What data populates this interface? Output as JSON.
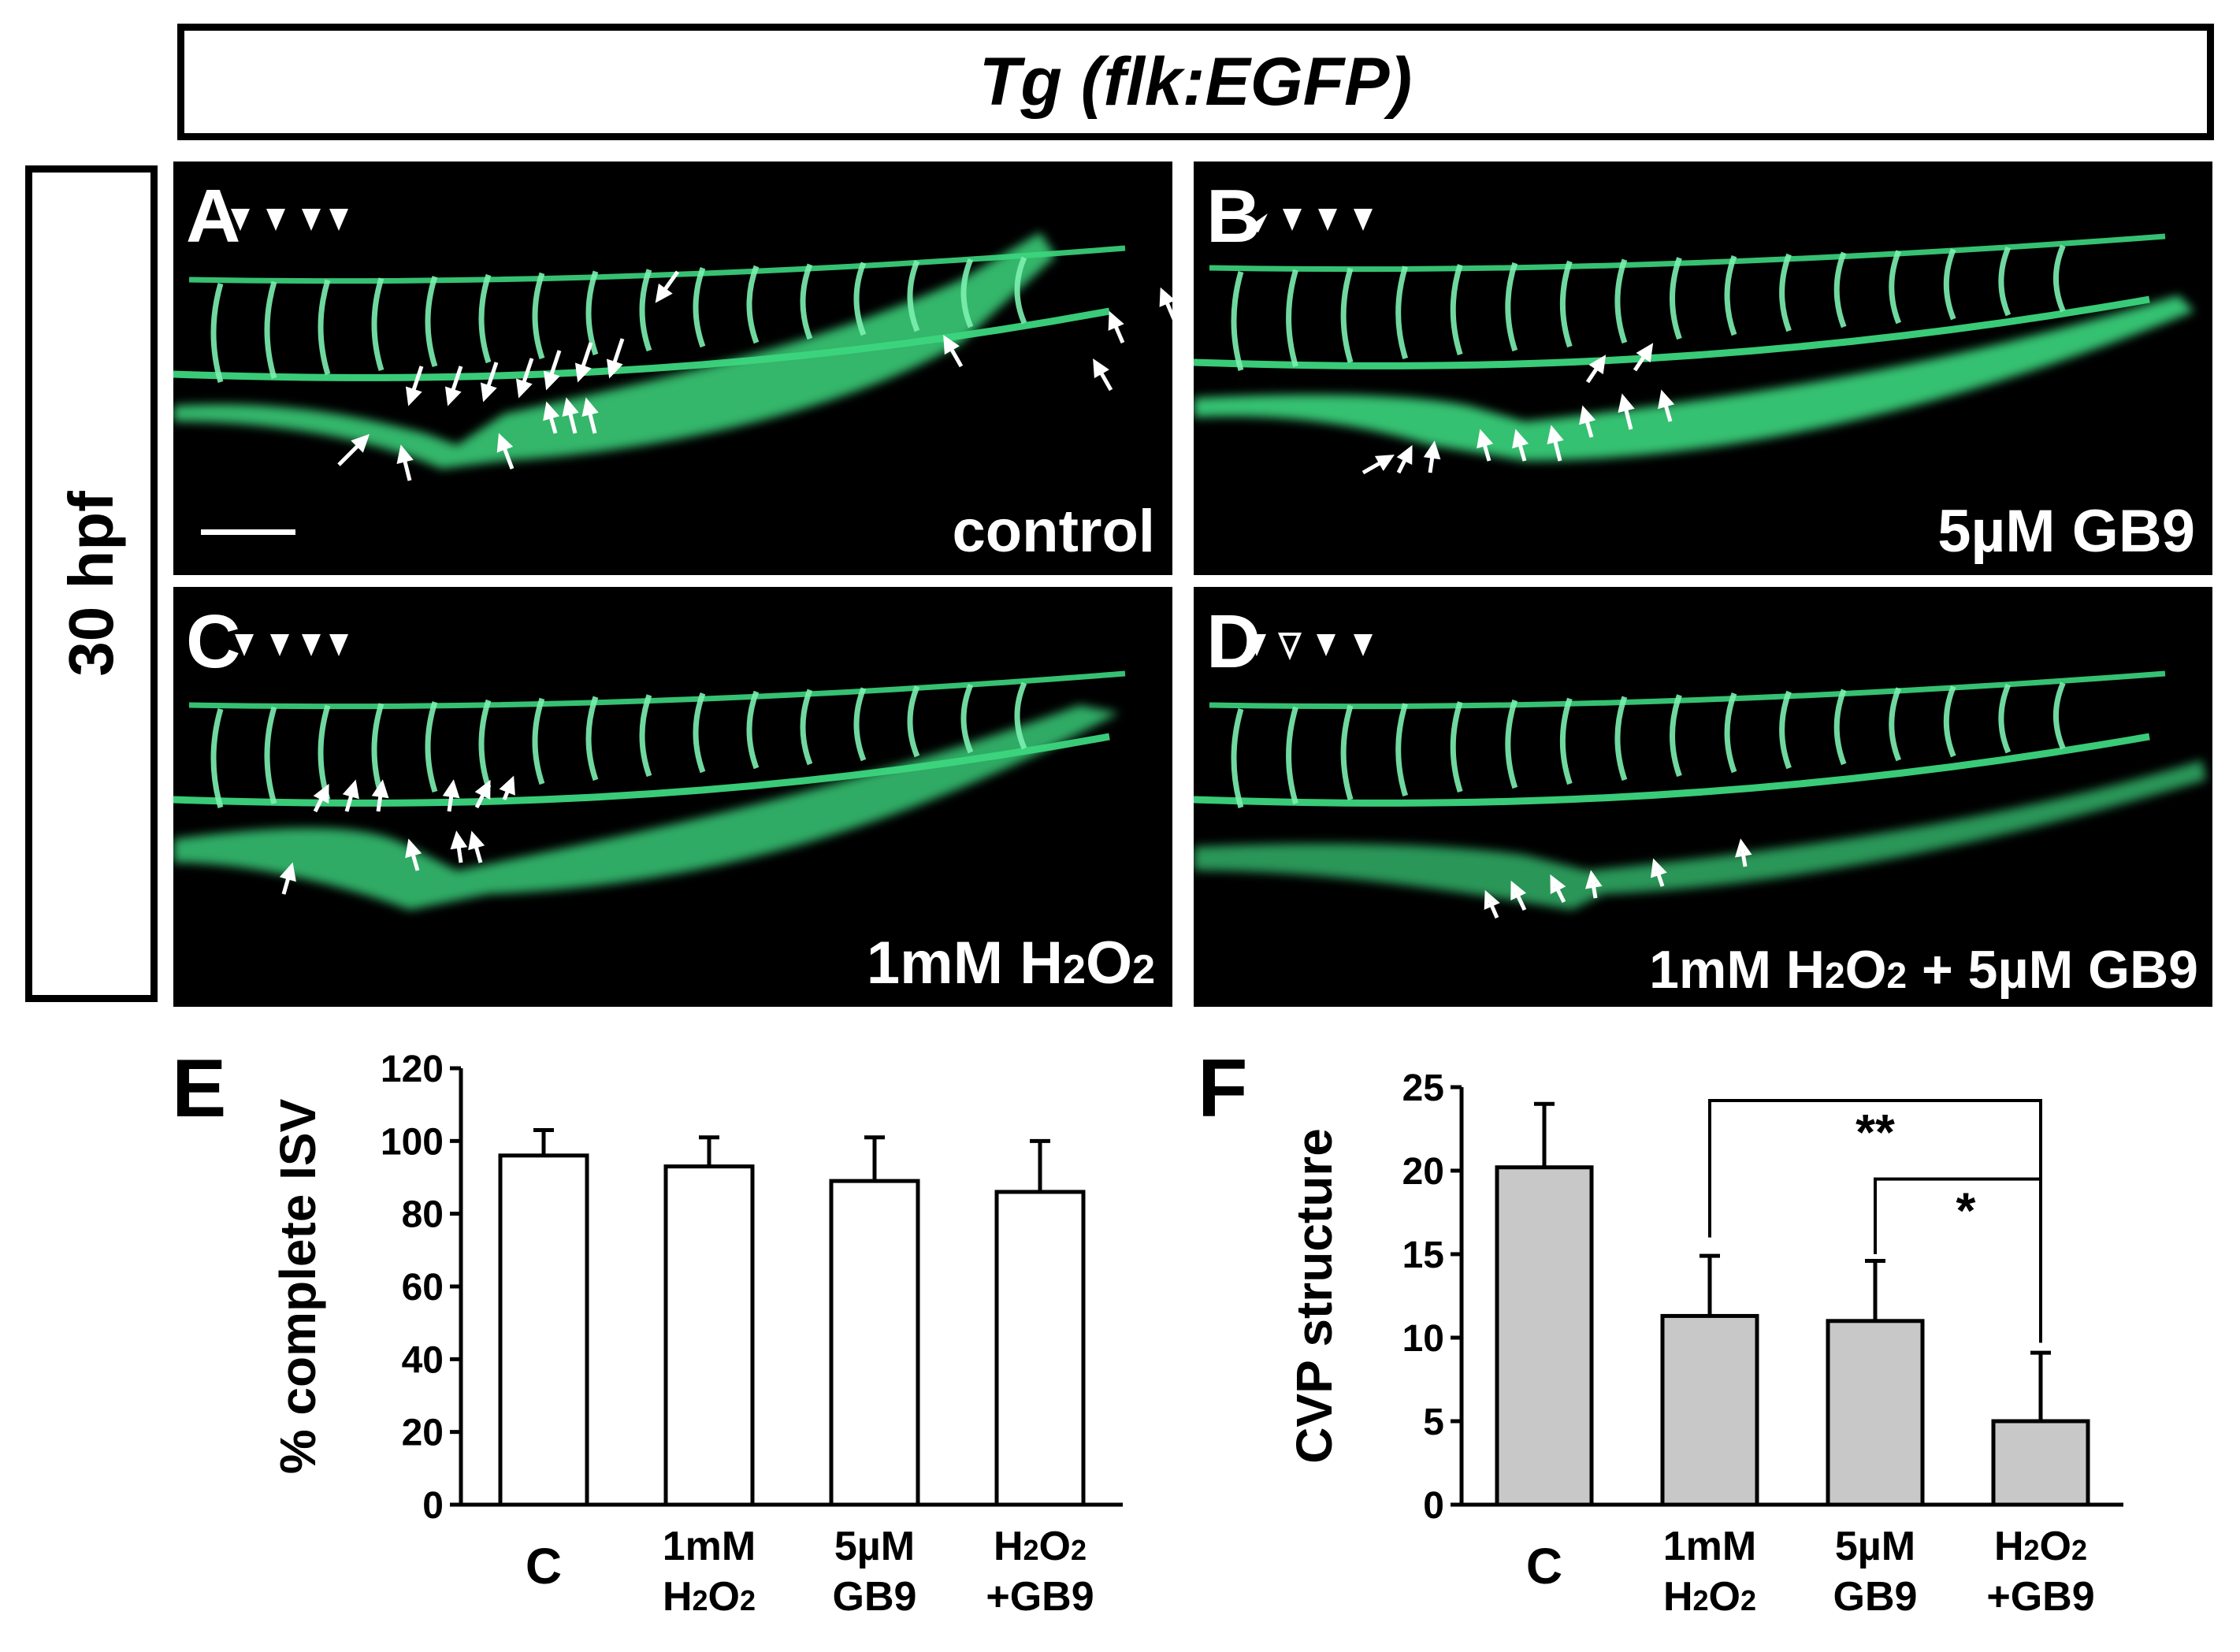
{
  "header": {
    "title": "Tg (flk:EGFP)"
  },
  "side_label": "30 hpf",
  "panels": [
    {
      "letter": "A",
      "caption": "control"
    },
    {
      "letter": "B",
      "caption": "5µM GB9"
    },
    {
      "letter": "C",
      "caption_main": "1mM H",
      "caption_sub1": "2",
      "caption_mid": "O",
      "caption_sub2": "2"
    },
    {
      "letter": "D",
      "caption_pre": "1mM H",
      "caption_sub1": "2",
      "caption_mid": "O",
      "caption_sub2": "2",
      "caption_post": " + 5µM GB9"
    }
  ],
  "colors": {
    "vessel": "#3cd67e",
    "vessel_bright": "#7cf0b0",
    "background": "#000000",
    "bar_fill_E": "#ffffff",
    "bar_fill_F": "#c8c8c8"
  },
  "chart_data": [
    {
      "panel": "E",
      "type": "bar",
      "ylabel": "% complete ISV",
      "ylim": [
        0,
        120
      ],
      "yticks": [
        0,
        20,
        40,
        60,
        80,
        100,
        120
      ],
      "categories": [
        [
          "C"
        ],
        [
          "1mM",
          "H2O2"
        ],
        [
          "5µM",
          "GB9"
        ],
        [
          "H2O2",
          "+GB9"
        ]
      ],
      "values": [
        96,
        93,
        89,
        86
      ],
      "errors": [
        7,
        8,
        12,
        14
      ]
    },
    {
      "panel": "F",
      "type": "bar",
      "ylabel": "CVP structure",
      "ylim": [
        0,
        25
      ],
      "yticks": [
        0,
        5,
        10,
        15,
        20,
        25
      ],
      "categories": [
        [
          "C"
        ],
        [
          "1mM",
          "H2O2"
        ],
        [
          "5µM",
          "GB9"
        ],
        [
          "H2O2",
          "+GB9"
        ]
      ],
      "values": [
        20.2,
        11.3,
        11.0,
        5.0
      ],
      "errors": [
        3.8,
        3.6,
        3.6,
        4.1
      ],
      "significance": [
        {
          "from": 1,
          "to": 3,
          "label": "**"
        },
        {
          "from": 2,
          "to": 3,
          "label": "*"
        }
      ]
    }
  ]
}
